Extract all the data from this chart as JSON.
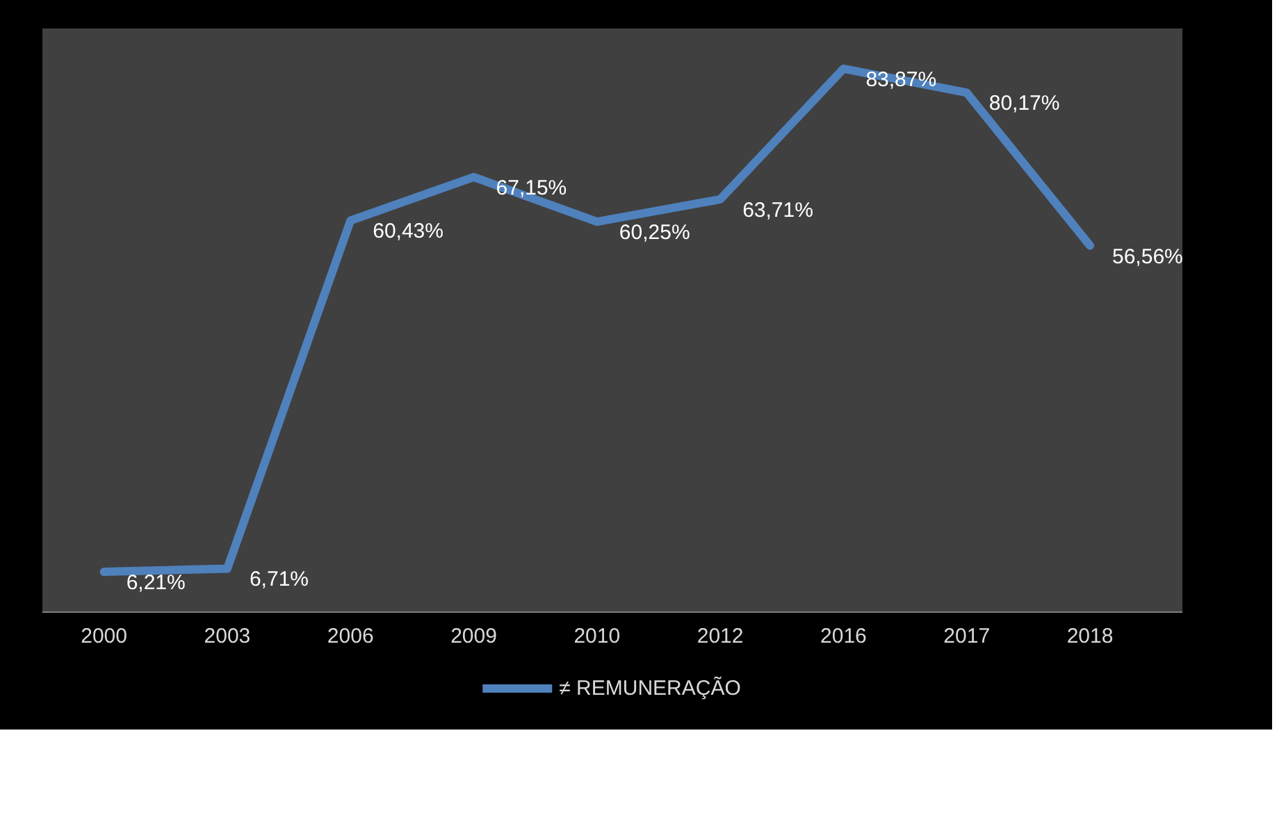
{
  "chart_data": {
    "type": "line",
    "categories": [
      "2000",
      "2003",
      "2006",
      "2009",
      "2010",
      "2012",
      "2016",
      "2017",
      "2018"
    ],
    "series": [
      {
        "name": "≠ REMUNERAÇÃO",
        "color": "#4f81bd",
        "values": [
          6.21,
          6.71,
          60.43,
          67.15,
          60.25,
          63.71,
          83.87,
          80.17,
          56.56
        ],
        "value_labels": [
          "6,21%",
          "6,71%",
          "60,43%",
          "67,15%",
          "60,25%",
          "63,71%",
          "83,87%",
          "80,17%",
          "56,56%"
        ]
      }
    ],
    "legend": "bottom",
    "grid": false,
    "marker": "none",
    "line_style": "solid"
  }
}
